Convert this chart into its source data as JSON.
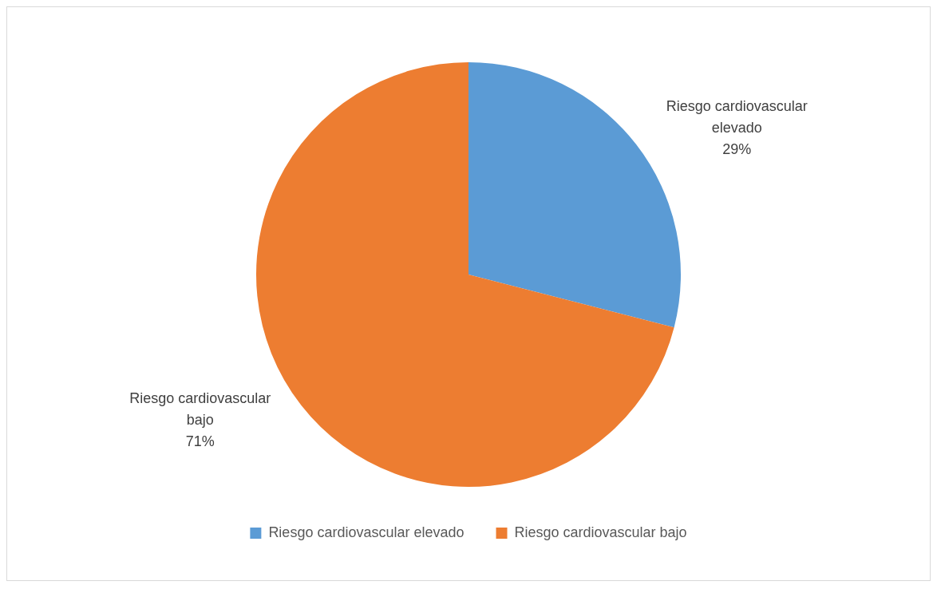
{
  "chart_data": {
    "type": "pie",
    "categories": [
      "Riesgo cardiovascular elevado",
      "Riesgo cardiovascular bajo"
    ],
    "values": [
      29,
      71
    ],
    "colors": [
      "#5b9bd5",
      "#ed7d31"
    ],
    "value_labels": [
      "29%",
      "71%"
    ],
    "legend": "bottom"
  }
}
